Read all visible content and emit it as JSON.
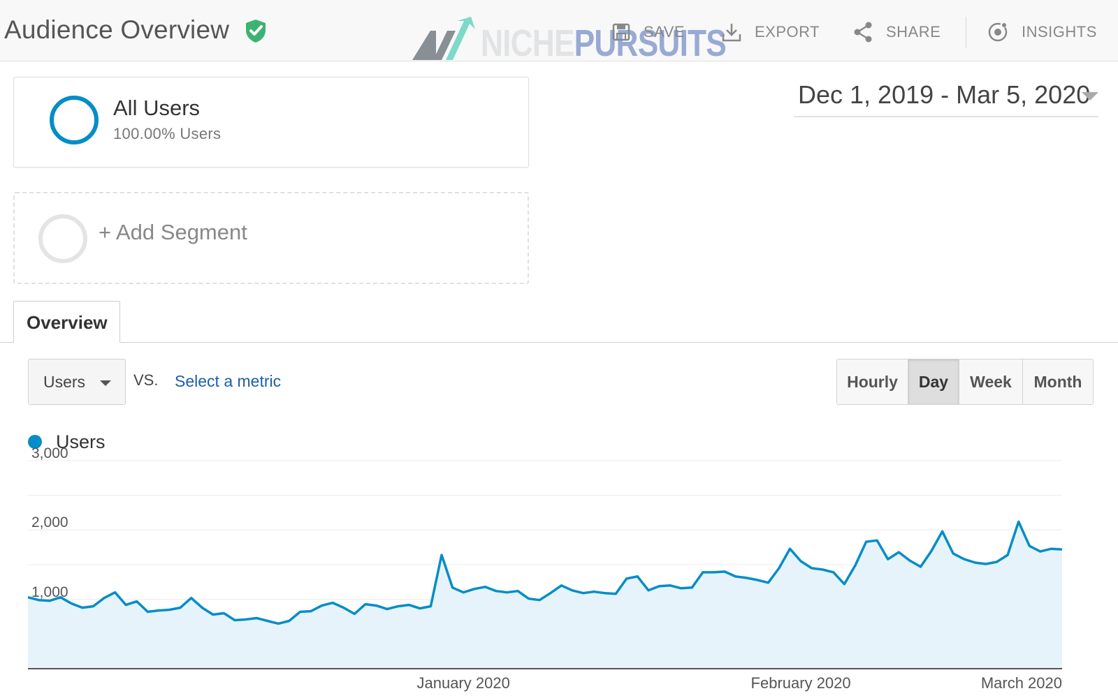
{
  "header": {
    "title": "Audience Overview",
    "verified_icon": "verified-shield-icon",
    "actions": [
      {
        "label": "SAVE",
        "icon": "save-icon"
      },
      {
        "label": "EXPORT",
        "icon": "download-icon"
      },
      {
        "label": "SHARE",
        "icon": "share-icon"
      },
      {
        "label": "INSIGHTS",
        "icon": "insights-icon"
      }
    ],
    "watermark": {
      "part1": "NICHE",
      "part2": "PURSUITS"
    }
  },
  "segments": {
    "active": {
      "name": "All Users",
      "subtitle": "100.00% Users"
    },
    "add_label": "+ Add Segment"
  },
  "date_range": {
    "label": "Dec 1, 2019 - Mar 5, 2020"
  },
  "tabs": [
    {
      "label": "Overview",
      "active": true
    }
  ],
  "controls": {
    "metric": "Users",
    "vs_label": "VS.",
    "select_metric": "Select a metric",
    "granularity": [
      {
        "label": "Hourly",
        "active": false
      },
      {
        "label": "Day",
        "active": true
      },
      {
        "label": "Week",
        "active": false
      },
      {
        "label": "Month",
        "active": false
      }
    ]
  },
  "colors": {
    "accent": "#058dc7",
    "area_fill": "#e7f3fb",
    "link": "#1a5fa8",
    "verified": "#3cb371"
  },
  "chart_data": {
    "type": "area",
    "series": [
      {
        "name": "Users",
        "x": [
          "2019-12-01",
          "2019-12-02",
          "2019-12-03",
          "2019-12-04",
          "2019-12-05",
          "2019-12-06",
          "2019-12-07",
          "2019-12-08",
          "2019-12-09",
          "2019-12-10",
          "2019-12-11",
          "2019-12-12",
          "2019-12-13",
          "2019-12-14",
          "2019-12-15",
          "2019-12-16",
          "2019-12-17",
          "2019-12-18",
          "2019-12-19",
          "2019-12-20",
          "2019-12-21",
          "2019-12-22",
          "2019-12-23",
          "2019-12-24",
          "2019-12-25",
          "2019-12-26",
          "2019-12-27",
          "2019-12-28",
          "2019-12-29",
          "2019-12-30",
          "2019-12-31",
          "2020-01-01",
          "2020-01-02",
          "2020-01-03",
          "2020-01-04",
          "2020-01-05",
          "2020-01-06",
          "2020-01-07",
          "2020-01-08",
          "2020-01-09",
          "2020-01-10",
          "2020-01-11",
          "2020-01-12",
          "2020-01-13",
          "2020-01-14",
          "2020-01-15",
          "2020-01-16",
          "2020-01-17",
          "2020-01-18",
          "2020-01-19",
          "2020-01-20",
          "2020-01-21",
          "2020-01-22",
          "2020-01-23",
          "2020-01-24",
          "2020-01-25",
          "2020-01-26",
          "2020-01-27",
          "2020-01-28",
          "2020-01-29",
          "2020-01-30",
          "2020-01-31",
          "2020-02-01",
          "2020-02-02",
          "2020-02-03",
          "2020-02-04",
          "2020-02-05",
          "2020-02-06",
          "2020-02-07",
          "2020-02-08",
          "2020-02-09",
          "2020-02-10",
          "2020-02-11",
          "2020-02-12",
          "2020-02-13",
          "2020-02-14",
          "2020-02-15",
          "2020-02-16",
          "2020-02-17",
          "2020-02-18",
          "2020-02-19",
          "2020-02-20",
          "2020-02-21",
          "2020-02-22",
          "2020-02-23",
          "2020-02-24",
          "2020-02-25",
          "2020-02-26",
          "2020-02-27",
          "2020-02-28",
          "2020-02-29",
          "2020-03-01",
          "2020-03-02",
          "2020-03-03",
          "2020-03-04",
          "2020-03-05"
        ],
        "values": [
          1030,
          990,
          980,
          1030,
          940,
          880,
          900,
          1020,
          1100,
          920,
          970,
          820,
          840,
          850,
          880,
          1020,
          880,
          780,
          800,
          700,
          710,
          730,
          690,
          650,
          690,
          820,
          830,
          910,
          950,
          880,
          790,
          930,
          910,
          860,
          900,
          920,
          870,
          900,
          1640,
          1170,
          1100,
          1150,
          1180,
          1120,
          1100,
          1120,
          1010,
          990,
          1090,
          1200,
          1130,
          1090,
          1110,
          1090,
          1080,
          1300,
          1330,
          1130,
          1190,
          1200,
          1160,
          1170,
          1390,
          1390,
          1400,
          1330,
          1310,
          1280,
          1240,
          1450,
          1730,
          1550,
          1450,
          1430,
          1390,
          1220,
          1490,
          1830,
          1850,
          1580,
          1680,
          1560,
          1470,
          1700,
          1980,
          1660,
          1580,
          1530,
          1510,
          1540,
          1640,
          2120,
          1770,
          1690,
          1730,
          1720
        ]
      }
    ],
    "ylim": [
      0,
      3000
    ],
    "yticks": [
      "1,000",
      "2,000",
      "3,000"
    ],
    "ytick_values": [
      1000,
      2000,
      3000
    ],
    "xticks": [
      {
        "label": "January 2020",
        "date": "2020-01-10"
      },
      {
        "label": "February 2020",
        "date": "2020-02-10"
      },
      {
        "label": "March 2020",
        "date": "2020-03-05"
      }
    ],
    "xlabel": "",
    "ylabel": "",
    "grid": true,
    "legend": "top-left"
  }
}
